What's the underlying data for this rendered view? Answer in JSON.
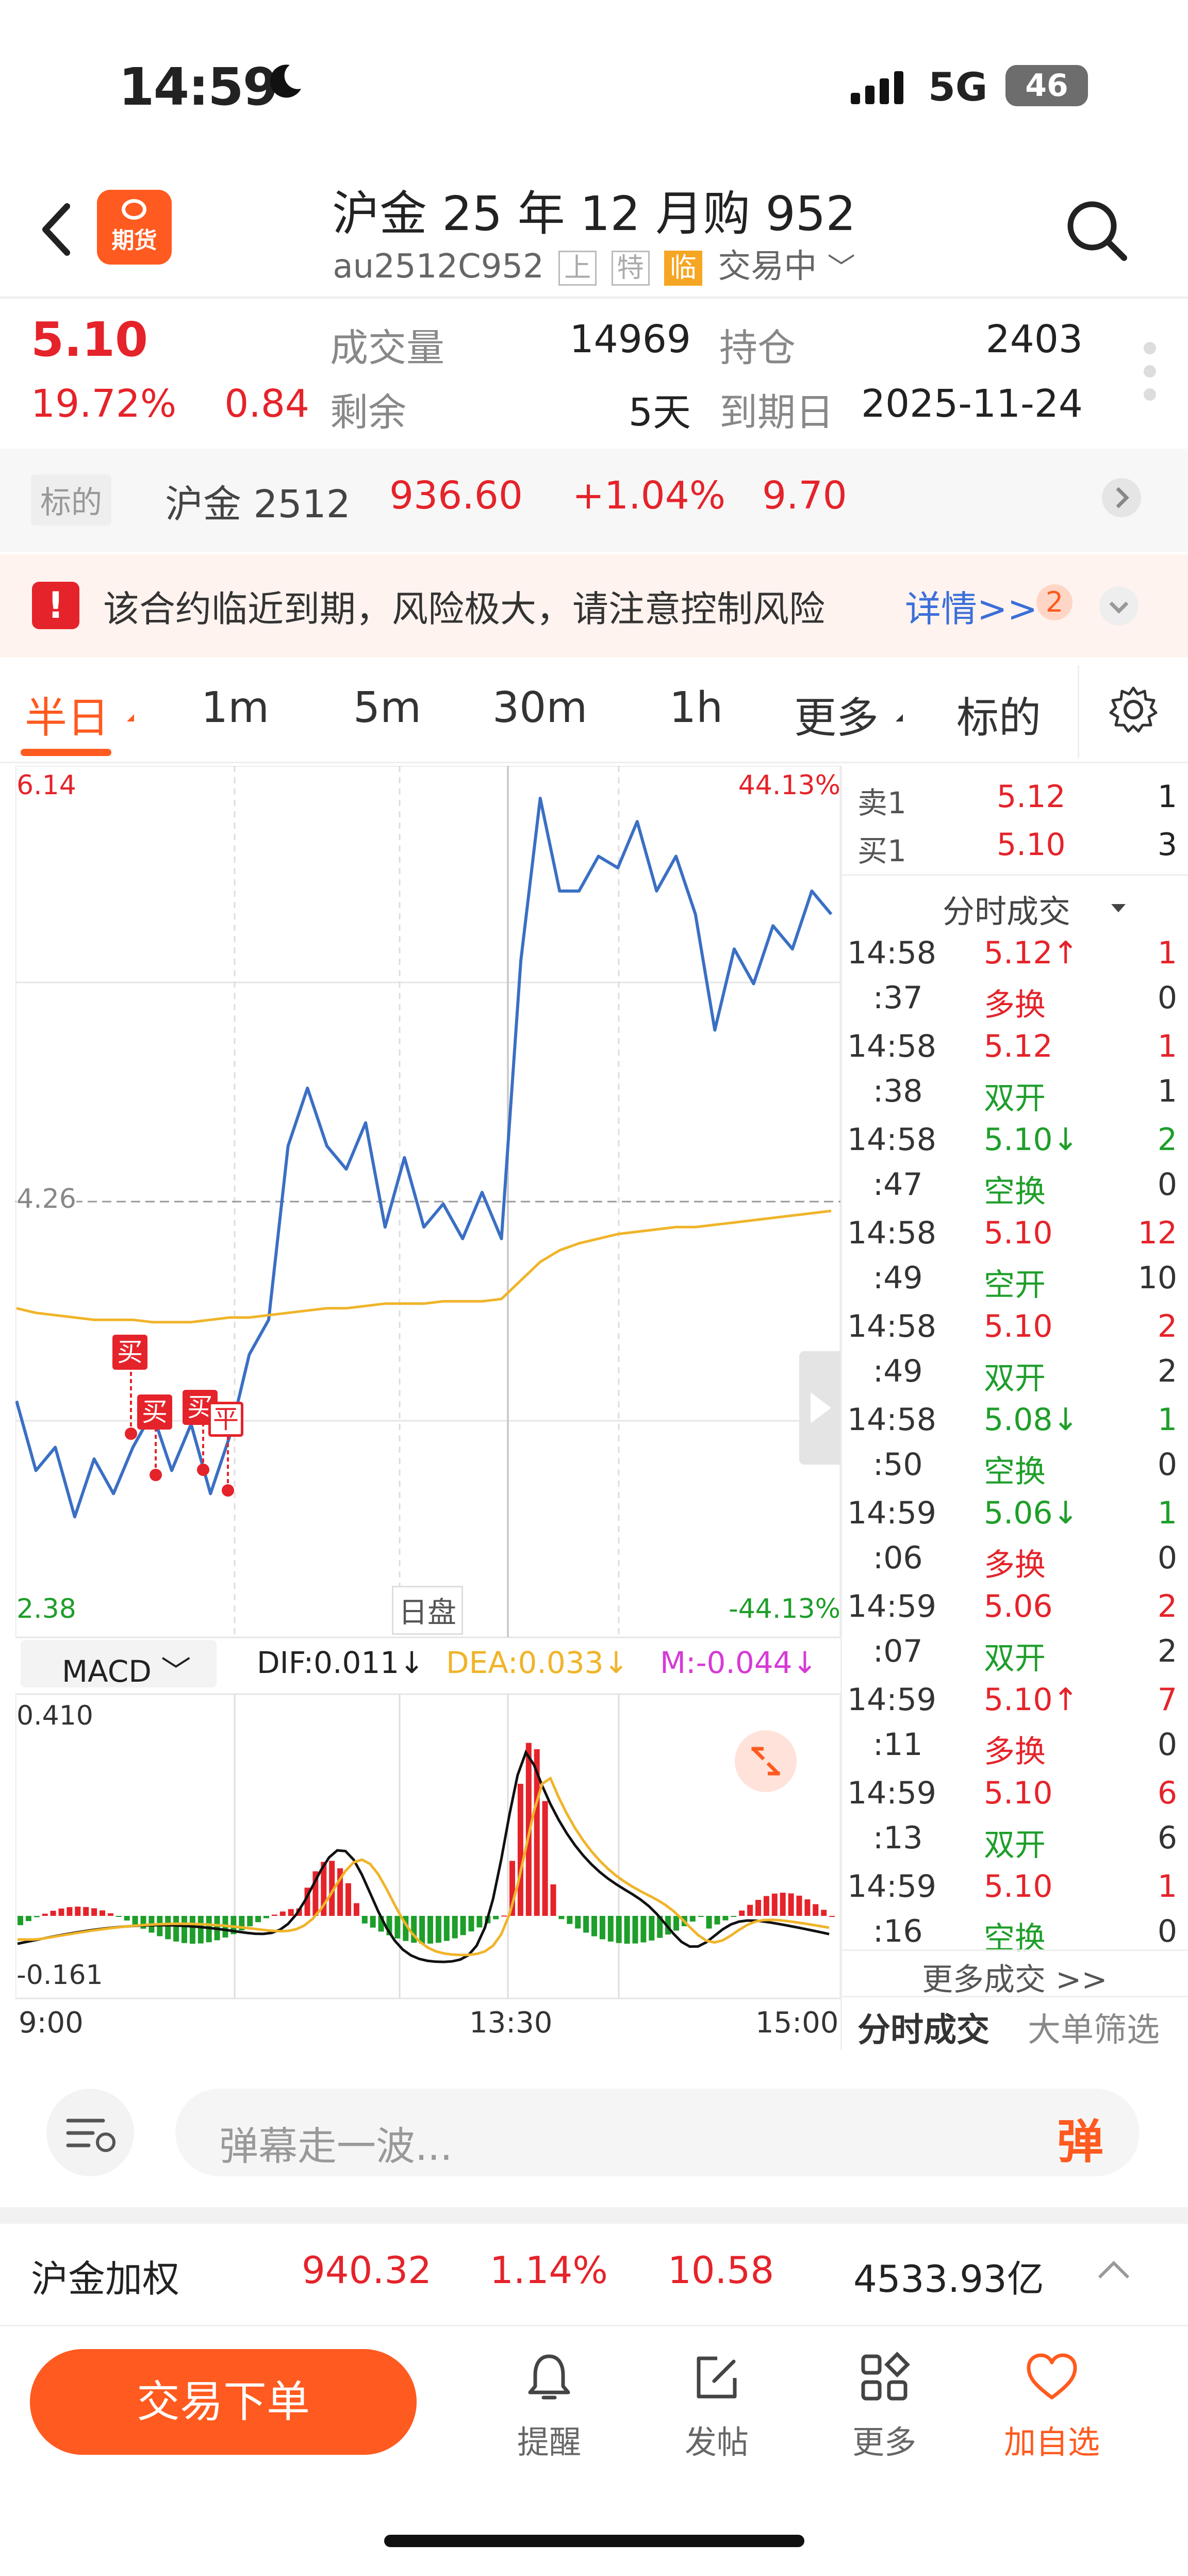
{
  "status_bar": {
    "time": "14:59",
    "network": "5G",
    "battery": "46"
  },
  "header": {
    "logo_label": "期货",
    "title": "沪金 25 年 12 月购 952",
    "code": "au2512C952",
    "tags": [
      "上",
      "特",
      "临"
    ],
    "trade_status": "交易中"
  },
  "quote": {
    "price": "5.10",
    "change_pct": "19.72%",
    "change": "0.84",
    "volume_label": "成交量",
    "volume": "14969",
    "oi_label": "持仓",
    "oi": "2403",
    "remaining_label": "剩余",
    "remaining": "5天",
    "expiry_label": "到期日",
    "expiry": "2025-11-24"
  },
  "underlying": {
    "tag": "标的",
    "name": "沪金 2512",
    "price": "936.60",
    "change_pct": "+1.04%",
    "change": "9.70"
  },
  "notice": {
    "text": "该合约临近到期，风险极大，请注意控制风险",
    "link": "详情>>",
    "count": "2"
  },
  "tabs": [
    "半日",
    "1m",
    "5m",
    "30m",
    "1h",
    "更多",
    "标的"
  ],
  "chart": {
    "price_high": "6.14",
    "price_mid": "4.26",
    "price_low": "2.38",
    "pct_high": "44.13%",
    "pct_low": "-44.13%",
    "session_label": "日盘",
    "time_labels": [
      "9:00",
      "13:30",
      "15:00"
    ],
    "markers": [
      "买",
      "买",
      "买",
      "平"
    ],
    "macd_select": "MACD",
    "dif": "DIF:0.011↓",
    "dea": "DEA:0.033↓",
    "m": "M:-0.044↓",
    "macd_high": "0.410",
    "macd_low": "-0.161",
    "colors": {
      "price_line": "#3a6fc4",
      "avg_line": "#f0b429",
      "up": "#e5232a",
      "down": "#1e9e2a",
      "dea": "#f0b429",
      "m": "#d63ad6"
    }
  },
  "chart_data": {
    "type": "line",
    "x_range": [
      "9:00",
      "15:00"
    ],
    "ylim": [
      2.38,
      6.14
    ],
    "reference_price": 4.26,
    "series": [
      {
        "values": [
          3.4,
          3.1,
          3.2,
          2.9,
          3.15,
          3.0,
          3.2,
          3.35,
          3.1,
          3.3,
          3.0,
          3.25,
          3.6,
          3.75,
          4.5,
          4.75,
          4.5,
          4.4,
          4.6,
          4.15,
          4.45,
          4.15,
          4.25,
          4.1,
          4.3,
          4.1,
          5.3,
          6.0,
          5.6,
          5.6,
          5.75,
          5.7,
          5.9,
          5.6,
          5.75,
          5.5,
          5.0,
          5.35,
          5.2,
          5.45,
          5.35,
          5.6,
          5.5
        ]
      },
      {
        "values": [
          3.8,
          3.78,
          3.77,
          3.76,
          3.75,
          3.75,
          3.75,
          3.74,
          3.74,
          3.74,
          3.75,
          3.76,
          3.76,
          3.77,
          3.78,
          3.79,
          3.8,
          3.8,
          3.81,
          3.82,
          3.82,
          3.82,
          3.83,
          3.83,
          3.83,
          3.84,
          3.92,
          4.0,
          4.05,
          4.08,
          4.1,
          4.12,
          4.13,
          4.14,
          4.15,
          4.15,
          4.16,
          4.17,
          4.18,
          4.19,
          4.2,
          4.21,
          4.22
        ]
      }
    ]
  },
  "order_book": {
    "asks": [
      {
        "label": "卖1",
        "price": "5.12",
        "qty": "1"
      }
    ],
    "bids": [
      {
        "label": "买1",
        "price": "5.10",
        "qty": "3"
      }
    ],
    "section_title": "分时成交",
    "trades": [
      {
        "time": "14:58",
        "sec": ":37",
        "price": "5.12↑",
        "dir": "up",
        "vol": "1",
        "type": "多换",
        "oi": "0"
      },
      {
        "time": "14:58",
        "sec": ":38",
        "price": "5.12",
        "dir": "up",
        "vol": "1",
        "type": "双开",
        "oi": "1"
      },
      {
        "time": "14:58",
        "sec": ":47",
        "price": "5.10↓",
        "dir": "down",
        "vol": "2",
        "type": "空换",
        "oi": "0"
      },
      {
        "time": "14:58",
        "sec": ":49",
        "price": "5.10",
        "dir": "up",
        "vol": "12",
        "type": "空开",
        "oi": "10"
      },
      {
        "time": "14:58",
        "sec": ":49",
        "price": "5.10",
        "dir": "up",
        "vol": "2",
        "type": "双开",
        "oi": "2"
      },
      {
        "time": "14:58",
        "sec": ":50",
        "price": "5.08↓",
        "dir": "down",
        "vol": "1",
        "type": "空换",
        "oi": "0"
      },
      {
        "time": "14:59",
        "sec": ":06",
        "price": "5.06↓",
        "dir": "down",
        "vol": "1",
        "type": "多换",
        "oi": "0"
      },
      {
        "time": "14:59",
        "sec": ":07",
        "price": "5.06",
        "dir": "up",
        "vol": "2",
        "type": "双开",
        "oi": "2"
      },
      {
        "time": "14:59",
        "sec": ":11",
        "price": "5.10↑",
        "dir": "up",
        "vol": "7",
        "type": "多换",
        "oi": "0"
      },
      {
        "time": "14:59",
        "sec": ":13",
        "price": "5.10",
        "dir": "up",
        "vol": "6",
        "type": "双开",
        "oi": "6"
      },
      {
        "time": "14:59",
        "sec": ":16",
        "price": "5.10",
        "dir": "up",
        "vol": "1",
        "type": "空换",
        "oi": "0"
      }
    ],
    "more": "更多成交 >>",
    "tab_active": "分时成交",
    "tab_other": "大单筛选"
  },
  "danmu": {
    "placeholder": "弹幕走一波...",
    "button": "弹"
  },
  "index_bar": {
    "name": "沪金加权",
    "price": "940.32",
    "change_pct": "1.14%",
    "change": "10.58",
    "amount": "4533.93亿"
  },
  "bottom_nav": {
    "cta": "交易下单",
    "items": [
      "提醒",
      "发帖",
      "更多",
      "加自选"
    ]
  }
}
